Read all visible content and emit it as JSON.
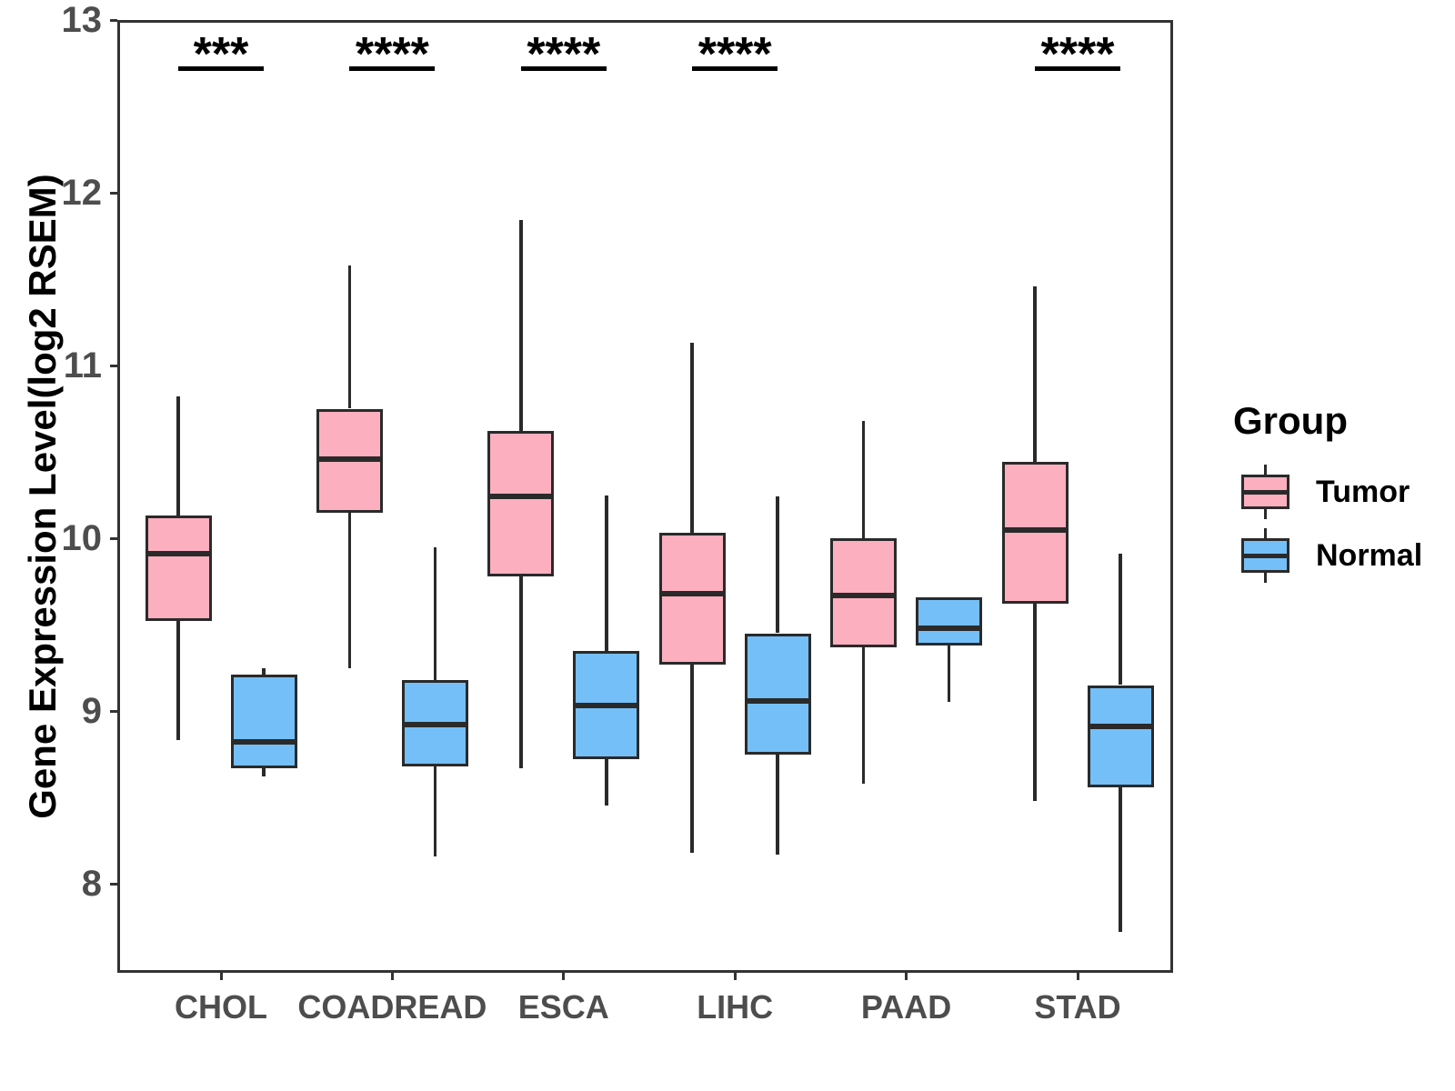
{
  "chart_data": {
    "type": "boxplot",
    "title": "",
    "xlabel": "",
    "ylabel": "Gene Expression Level(log2 RSEM)",
    "ylim": [
      7.49,
      13
    ],
    "yticks": [
      8,
      9,
      10,
      11,
      12,
      13
    ],
    "grid": false,
    "categories": [
      "CHOL",
      "COADREAD",
      "ESCA",
      "LIHC",
      "PAAD",
      "STAD"
    ],
    "legend": {
      "title": "Group",
      "position": "right",
      "entries": [
        {
          "label": "Tumor",
          "color": "#FCAFBF"
        },
        {
          "label": "Normal",
          "color": "#74BFF8"
        }
      ]
    },
    "significance": [
      {
        "category": "CHOL",
        "label": "***"
      },
      {
        "category": "COADREAD",
        "label": "****"
      },
      {
        "category": "ESCA",
        "label": "****"
      },
      {
        "category": "LIHC",
        "label": "****"
      },
      {
        "category": "STAD",
        "label": "****"
      }
    ],
    "series": [
      {
        "name": "Tumor",
        "color": "#FCAFBF",
        "data": [
          {
            "category": "CHOL",
            "min": 8.83,
            "q1": 9.52,
            "median": 9.91,
            "q3": 10.13,
            "max": 10.82
          },
          {
            "category": "COADREAD",
            "min": 9.25,
            "q1": 10.15,
            "median": 10.46,
            "q3": 10.75,
            "max": 11.58
          },
          {
            "category": "ESCA",
            "min": 8.67,
            "q1": 9.78,
            "median": 10.24,
            "q3": 10.62,
            "max": 11.84
          },
          {
            "category": "LIHC",
            "min": 8.18,
            "q1": 9.27,
            "median": 9.68,
            "q3": 10.03,
            "max": 11.13
          },
          {
            "category": "PAAD",
            "min": 8.58,
            "q1": 9.37,
            "median": 9.67,
            "q3": 10.0,
            "max": 10.68
          },
          {
            "category": "STAD",
            "min": 8.48,
            "q1": 9.62,
            "median": 10.05,
            "q3": 10.44,
            "max": 11.46
          }
        ]
      },
      {
        "name": "Normal",
        "color": "#74BFF8",
        "data": [
          {
            "category": "CHOL",
            "min": 8.62,
            "q1": 8.67,
            "median": 8.82,
            "q3": 9.21,
            "max": 9.25
          },
          {
            "category": "COADREAD",
            "min": 8.16,
            "q1": 8.68,
            "median": 8.92,
            "q3": 9.18,
            "max": 9.95
          },
          {
            "category": "ESCA",
            "min": 8.45,
            "q1": 8.72,
            "median": 9.03,
            "q3": 9.35,
            "max": 10.25
          },
          {
            "category": "LIHC",
            "min": 8.17,
            "q1": 8.75,
            "median": 9.06,
            "q3": 9.45,
            "max": 10.24
          },
          {
            "category": "PAAD",
            "min": 9.05,
            "q1": 9.38,
            "median": 9.48,
            "q3": 9.66,
            "max": 9.66
          },
          {
            "category": "STAD",
            "min": 7.72,
            "q1": 8.56,
            "median": 8.91,
            "q3": 9.15,
            "max": 9.91
          }
        ]
      }
    ],
    "colors": {
      "box_stroke": "#2a2a2a",
      "axis": "#333333",
      "tick_label": "#4d4d4d",
      "annotation": "#000000"
    }
  }
}
